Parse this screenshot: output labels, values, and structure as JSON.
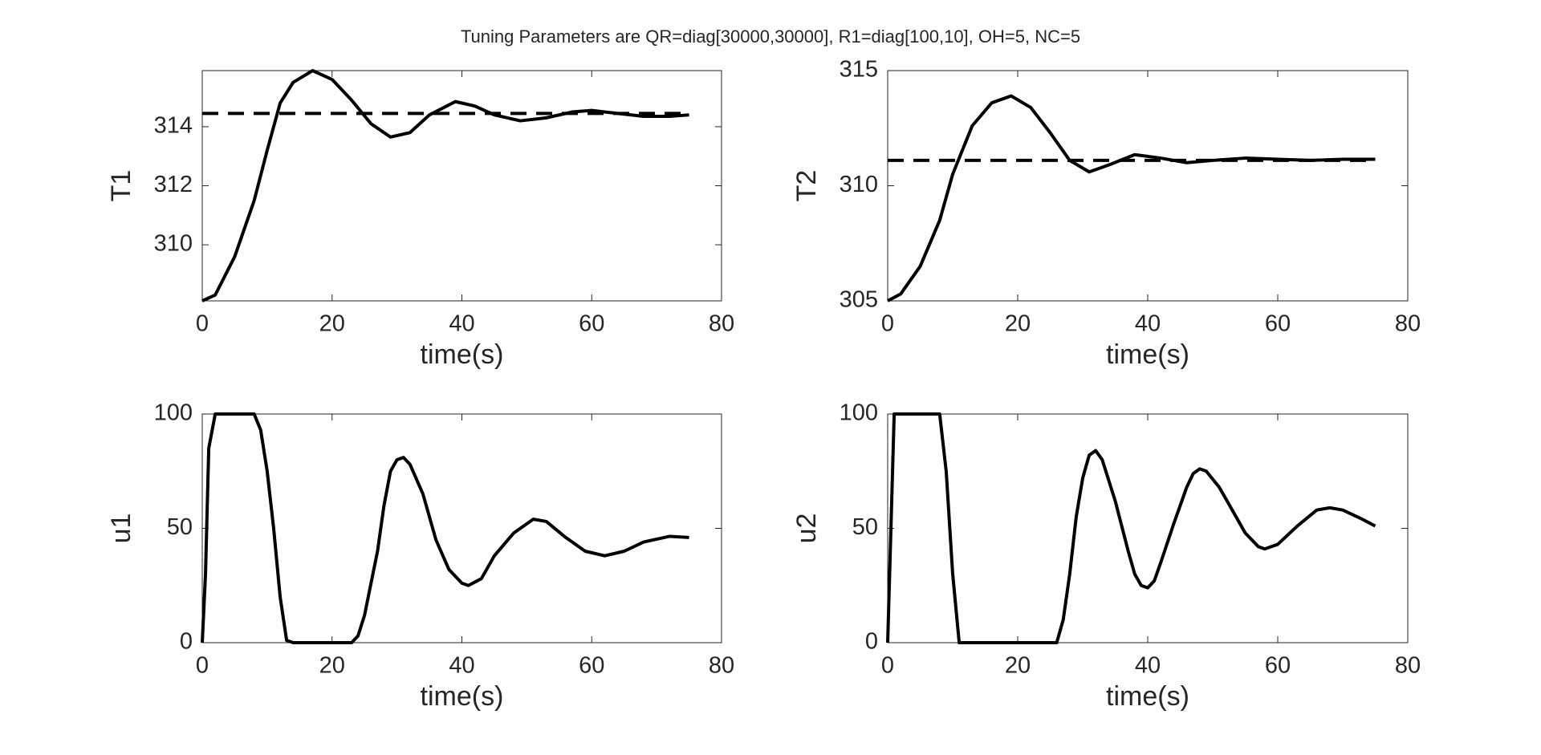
{
  "title": "Tuning Parameters are QR=diag[30000,30000],  R1=diag[100,10],  OH=5,  NC=5",
  "chart_data": [
    {
      "type": "line",
      "xlabel": "time(s)",
      "ylabel": "T1",
      "xlim": [
        0,
        80
      ],
      "xticks": [
        0,
        20,
        40,
        60,
        80
      ],
      "ylim": [
        308.1,
        315.9
      ],
      "yticks": [
        310,
        312,
        314
      ],
      "series": [
        {
          "color": "#000000",
          "line_style": "solid",
          "x": [
            0,
            2,
            5,
            8,
            10,
            12,
            14,
            17,
            20,
            23,
            26,
            29,
            32,
            35,
            39,
            42,
            45,
            49,
            53,
            57,
            60,
            64,
            68,
            72,
            75
          ],
          "values": [
            308.1,
            308.3,
            309.6,
            311.5,
            313.2,
            314.8,
            315.5,
            315.9,
            315.6,
            314.9,
            314.1,
            313.65,
            313.8,
            314.4,
            314.85,
            314.7,
            314.4,
            314.2,
            314.3,
            314.5,
            314.55,
            314.45,
            314.35,
            314.35,
            314.4
          ]
        },
        {
          "color": "#000000",
          "line_style": "dashed",
          "x": [
            0,
            75
          ],
          "values": [
            314.45,
            314.45
          ]
        }
      ]
    },
    {
      "type": "line",
      "xlabel": "time(s)",
      "ylabel": "T2",
      "xlim": [
        0,
        80
      ],
      "xticks": [
        0,
        20,
        40,
        60,
        80
      ],
      "ylim": [
        305,
        315
      ],
      "yticks": [
        305,
        310,
        315
      ],
      "series": [
        {
          "color": "#000000",
          "line_style": "solid",
          "x": [
            0,
            2,
            5,
            8,
            10,
            13,
            16,
            19,
            22,
            25,
            28,
            31,
            34,
            38,
            42,
            46,
            50,
            55,
            60,
            65,
            70,
            75
          ],
          "values": [
            305,
            305.3,
            306.5,
            308.5,
            310.5,
            312.6,
            313.6,
            313.9,
            313.4,
            312.3,
            311.1,
            310.6,
            310.9,
            311.35,
            311.2,
            311.0,
            311.1,
            311.2,
            311.15,
            311.1,
            311.15,
            311.15
          ]
        },
        {
          "color": "#000000",
          "line_style": "dashed",
          "x": [
            0,
            75
          ],
          "values": [
            311.1,
            311.1
          ]
        }
      ]
    },
    {
      "type": "line",
      "xlabel": "time(s)",
      "ylabel": "u1",
      "xlim": [
        0,
        80
      ],
      "xticks": [
        0,
        20,
        40,
        60,
        80
      ],
      "ylim": [
        0,
        100
      ],
      "yticks": [
        0,
        50,
        100
      ],
      "series": [
        {
          "color": "#000000",
          "line_style": "solid",
          "x": [
            0,
            0.5,
            1,
            2,
            8,
            9,
            10,
            11,
            12,
            13,
            14,
            23,
            24,
            25,
            27,
            28,
            29,
            30,
            31,
            32,
            34,
            36,
            38,
            40,
            41,
            43,
            45,
            48,
            51,
            53,
            56,
            59,
            62,
            65,
            68,
            72,
            75
          ],
          "values": [
            0,
            30,
            85,
            100,
            100,
            93,
            75,
            50,
            20,
            1,
            0,
            0,
            3,
            12,
            40,
            60,
            75,
            80,
            81,
            78,
            65,
            45,
            32,
            26,
            25,
            28,
            38,
            48,
            54,
            53,
            46,
            40,
            38,
            40,
            44,
            46.5,
            46
          ]
        }
      ]
    },
    {
      "type": "line",
      "xlabel": "time(s)",
      "ylabel": "u2",
      "xlim": [
        0,
        80
      ],
      "xticks": [
        0,
        20,
        40,
        60,
        80
      ],
      "ylim": [
        0,
        100
      ],
      "yticks": [
        0,
        50,
        100
      ],
      "series": [
        {
          "color": "#000000",
          "line_style": "solid",
          "x": [
            0,
            1,
            8,
            9,
            10,
            11,
            26,
            27,
            28,
            29,
            30,
            31,
            32,
            33,
            35,
            37,
            38,
            39,
            40,
            41,
            42,
            44,
            46,
            47,
            48,
            49,
            51,
            53,
            55,
            57,
            58,
            60,
            63,
            66,
            68,
            70,
            73,
            75
          ],
          "values": [
            0,
            100,
            100,
            75,
            30,
            0,
            0,
            10,
            30,
            55,
            72,
            82,
            84,
            80,
            62,
            40,
            30,
            25,
            24,
            27,
            35,
            52,
            68,
            74,
            76,
            75,
            68,
            58,
            48,
            42,
            41,
            43,
            51,
            58,
            59,
            58,
            54,
            51
          ]
        }
      ]
    }
  ]
}
